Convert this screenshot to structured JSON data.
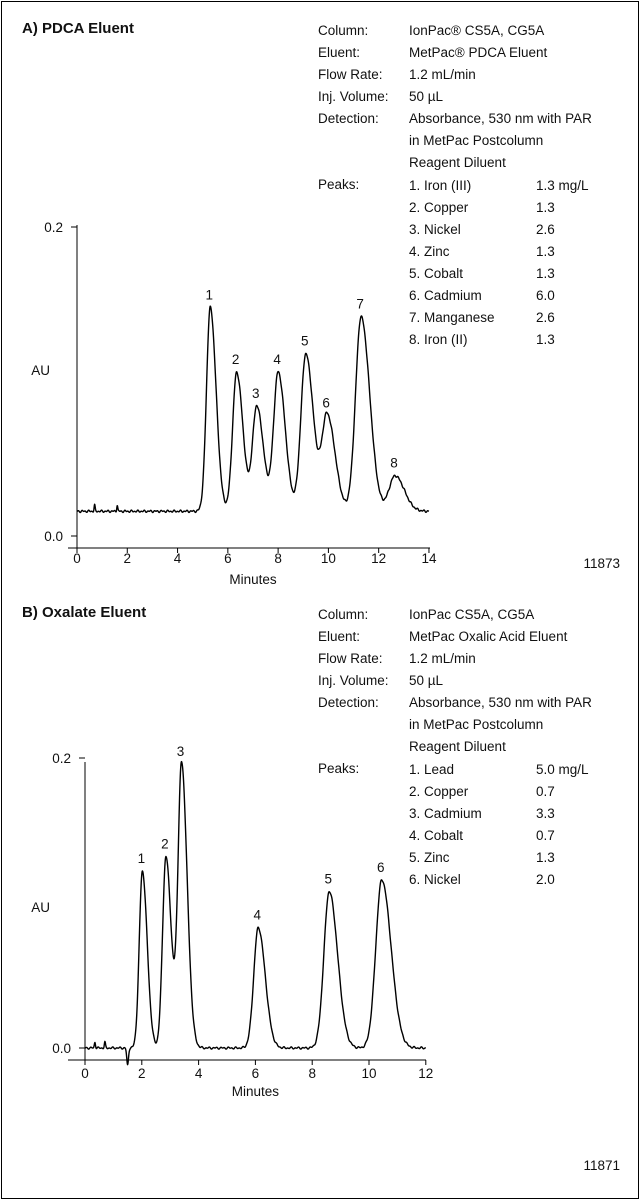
{
  "chart_data": [
    {
      "type": "line",
      "title": "A)  PDCA Eluent",
      "xlabel": "Minutes",
      "ylabel": "AU",
      "xlim": [
        0,
        14
      ],
      "ylim": [
        0,
        0.2
      ],
      "x_ticks": [
        "0",
        "2",
        "4",
        "6",
        "8",
        "10",
        "12",
        "14"
      ],
      "y_ticks": [
        "0.0",
        "0.2"
      ],
      "grid": false,
      "baseline": 0.016,
      "peaks": [
        {
          "label": "1",
          "x": 5.3,
          "y": 0.148
        },
        {
          "label": "2",
          "x": 6.35,
          "y": 0.106
        },
        {
          "label": "3",
          "x": 7.15,
          "y": 0.084
        },
        {
          "label": "4",
          "x": 8.0,
          "y": 0.106
        },
        {
          "label": "5",
          "x": 9.1,
          "y": 0.118
        },
        {
          "label": "6",
          "x": 9.95,
          "y": 0.078
        },
        {
          "label": "7",
          "x": 11.3,
          "y": 0.142
        },
        {
          "label": "8",
          "x": 12.65,
          "y": 0.039
        }
      ],
      "conditions": [
        {
          "label": "Column:",
          "lines": [
            "IonPac® CS5A, CG5A"
          ]
        },
        {
          "label": "Eluent:",
          "lines": [
            "MetPac® PDCA Eluent"
          ]
        },
        {
          "label": "Flow Rate:",
          "lines": [
            "1.2 mL/min"
          ]
        },
        {
          "label": "Inj. Volume:",
          "lines": [
            "50 µL"
          ]
        },
        {
          "label": "Detection:",
          "lines": [
            "Absorbance, 530 nm with PAR",
            "in MetPac Postcolumn",
            "Reagent Diluent"
          ]
        }
      ],
      "peaks_label": "Peaks:",
      "peak_table": [
        {
          "name": "1. Iron (III)",
          "conc": "1.3 mg/L"
        },
        {
          "name": "2. Copper",
          "conc": "1.3"
        },
        {
          "name": "3. Nickel",
          "conc": "2.6"
        },
        {
          "name": "4. Zinc",
          "conc": "1.3"
        },
        {
          "name": "5. Cobalt",
          "conc": "1.3"
        },
        {
          "name": "6. Cadmium",
          "conc": "6.0"
        },
        {
          "name": "7. Manganese",
          "conc": "2.6"
        },
        {
          "name": "8. Iron (II)",
          "conc": "1.3"
        }
      ],
      "figure_number": "11873"
    },
    {
      "type": "line",
      "title": "B)  Oxalate Eluent",
      "xlabel": "Minutes",
      "ylabel": "AU",
      "xlim": [
        0,
        12
      ],
      "ylim": [
        0,
        0.2
      ],
      "x_ticks": [
        "0",
        "2",
        "4",
        "6",
        "8",
        "10",
        "12"
      ],
      "y_ticks": [
        "0.0",
        "0.2"
      ],
      "grid": false,
      "baseline": 0.0,
      "peaks": [
        {
          "label": "1",
          "x": 2.02,
          "y": 0.122
        },
        {
          "label": "2",
          "x": 2.85,
          "y": 0.132
        },
        {
          "label": "3",
          "x": 3.4,
          "y": 0.196
        },
        {
          "label": "4",
          "x": 6.1,
          "y": 0.083
        },
        {
          "label": "5",
          "x": 8.6,
          "y": 0.108
        },
        {
          "label": "6",
          "x": 10.45,
          "y": 0.116
        }
      ],
      "conditions": [
        {
          "label": "Column:",
          "lines": [
            "IonPac CS5A, CG5A"
          ]
        },
        {
          "label": "Eluent:",
          "lines": [
            "MetPac Oxalic Acid Eluent"
          ]
        },
        {
          "label": "Flow Rate:",
          "lines": [
            "1.2 mL/min"
          ]
        },
        {
          "label": "Inj. Volume:",
          "lines": [
            "50 µL"
          ]
        },
        {
          "label": "Detection:",
          "lines": [
            "Absorbance, 530 nm with PAR",
            "in MetPac Postcolumn",
            "Reagent Diluent"
          ]
        }
      ],
      "peaks_label": "Peaks:",
      "peak_table": [
        {
          "name": "1. Lead",
          "conc": "5.0 mg/L"
        },
        {
          "name": "2. Copper",
          "conc": "0.7"
        },
        {
          "name": "3. Cadmium",
          "conc": "3.3"
        },
        {
          "name": "4. Cobalt",
          "conc": "0.7"
        },
        {
          "name": "5. Zinc",
          "conc": "1.3"
        },
        {
          "name": "6. Nickel",
          "conc": "2.0"
        }
      ],
      "figure_number": "11871"
    }
  ]
}
